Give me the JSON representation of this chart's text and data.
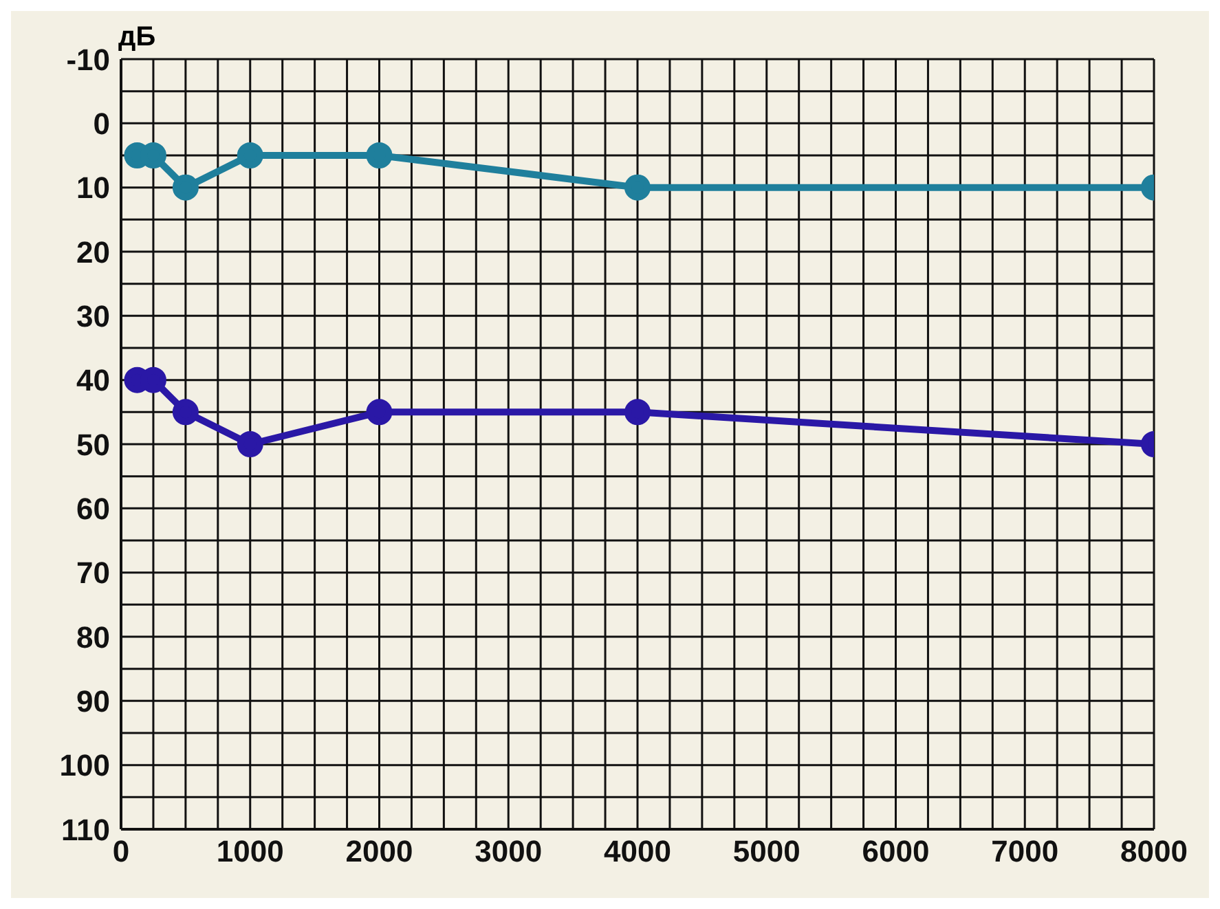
{
  "chart_data": {
    "type": "line",
    "ylabel": "дБ",
    "xlim": [
      0,
      8000
    ],
    "ylim": [
      110,
      -10
    ],
    "xticks": [
      0,
      {
        "value": 250,
        "label": null
      },
      {
        "value": 500,
        "label": null
      },
      {
        "value": 750,
        "label": null
      },
      1000,
      {
        "value": 1250,
        "label": null
      },
      {
        "value": 1500,
        "label": null
      },
      {
        "value": 1750,
        "label": null
      },
      2000,
      {
        "value": 2250,
        "label": null
      },
      {
        "value": 2500,
        "label": null
      },
      {
        "value": 2750,
        "label": null
      },
      3000,
      {
        "value": 3250,
        "label": null
      },
      {
        "value": 3500,
        "label": null
      },
      {
        "value": 3750,
        "label": null
      },
      4000,
      {
        "value": 4250,
        "label": null
      },
      {
        "value": 4500,
        "label": null
      },
      {
        "value": 4750,
        "label": null
      },
      5000,
      {
        "value": 5250,
        "label": null
      },
      {
        "value": 5500,
        "label": null
      },
      {
        "value": 5750,
        "label": null
      },
      6000,
      {
        "value": 6250,
        "label": null
      },
      {
        "value": 6500,
        "label": null
      },
      {
        "value": 6750,
        "label": null
      },
      7000,
      {
        "value": 7250,
        "label": null
      },
      {
        "value": 7500,
        "label": null
      },
      {
        "value": 7750,
        "label": null
      },
      8000
    ],
    "yticks": [
      -10,
      {
        "value": -5,
        "label": null
      },
      0,
      {
        "value": 5,
        "label": null
      },
      10,
      {
        "value": 15,
        "label": null
      },
      20,
      {
        "value": 25,
        "label": null
      },
      30,
      {
        "value": 35,
        "label": null
      },
      40,
      {
        "value": 45,
        "label": null
      },
      50,
      {
        "value": 55,
        "label": null
      },
      60,
      {
        "value": 65,
        "label": null
      },
      70,
      {
        "value": 75,
        "label": null
      },
      80,
      {
        "value": 85,
        "label": null
      },
      90,
      {
        "value": 95,
        "label": null
      },
      100,
      {
        "value": 105,
        "label": null
      },
      110
    ],
    "grid": true,
    "marker": "circle",
    "line_style": "solid",
    "legend": false,
    "series": [
      {
        "color": "#1f7f9c",
        "x": [
          125,
          250,
          500,
          1000,
          2000,
          4000,
          8000
        ],
        "values": [
          5,
          5,
          10,
          5,
          5,
          10,
          10
        ]
      },
      {
        "color": "#2a18a6",
        "x": [
          125,
          250,
          500,
          1000,
          2000,
          4000,
          8000
        ],
        "values": [
          40,
          40,
          45,
          50,
          45,
          45,
          50
        ]
      }
    ]
  }
}
